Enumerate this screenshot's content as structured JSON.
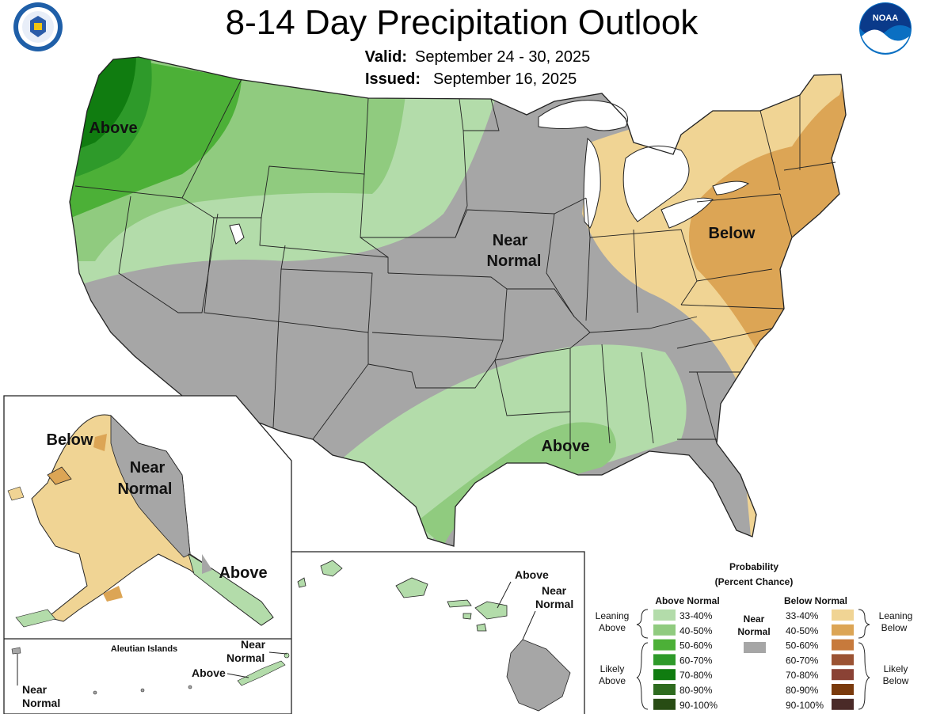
{
  "header": {
    "title": "8-14 Day Precipitation Outlook",
    "valid_label": "Valid:",
    "valid_value": "September 24 - 30, 2025",
    "issued_label": "Issued:",
    "issued_value": "September 16, 2025",
    "noaa_logo_text": "NOAA"
  },
  "colors": {
    "gray": "#a6a6a6",
    "above_33_40": "#b3dcaa",
    "above_40_50": "#90cb7f",
    "above_50_60": "#4cb037",
    "above_60_70": "#2e9a2a",
    "above_70_80": "#107c10",
    "above_80_90": "#2e6b1f",
    "above_90_100": "#284c14",
    "below_33_40": "#f0d494",
    "below_40_50": "#dca555",
    "below_50_60": "#c77a3c",
    "below_60_70": "#9b5333",
    "below_70_80": "#8a4235",
    "below_80_90": "#7a3a0c",
    "below_90_100": "#4a2a28",
    "water": "#ffffff",
    "border": "#222222"
  },
  "map_labels": {
    "conus_above_nw": "Above",
    "conus_near_normal_line1": "Near",
    "conus_near_normal_line2": "Normal",
    "conus_below": "Below",
    "conus_above_south": "Above",
    "ak_below": "Below",
    "ak_near_line1": "Near",
    "ak_near_line2": "Normal",
    "ak_above": "Above",
    "aleutian_title": "Aleutian Islands",
    "aleutian_near_left_line1": "Near",
    "aleutian_near_left_line2": "Normal",
    "aleutian_near_right_line1": "Near",
    "aleutian_near_right_line2": "Normal",
    "aleutian_above": "Above",
    "hi_above": "Above",
    "hi_near_line1": "Near",
    "hi_near_line2": "Normal"
  },
  "legend": {
    "title_line1": "Probability",
    "title_line2": "(Percent Chance)",
    "above_header": "Above Normal",
    "below_header": "Below Normal",
    "near_line1": "Near",
    "near_line2": "Normal",
    "leaning_above_line1": "Leaning",
    "leaning_above_line2": "Above",
    "likely_above_line1": "Likely",
    "likely_above_line2": "Above",
    "leaning_below_line1": "Leaning",
    "leaning_below_line2": "Below",
    "likely_below_line1": "Likely",
    "likely_below_line2": "Below",
    "ranges": [
      "33-40%",
      "40-50%",
      "50-60%",
      "60-70%",
      "70-80%",
      "80-90%",
      "90-100%"
    ]
  }
}
